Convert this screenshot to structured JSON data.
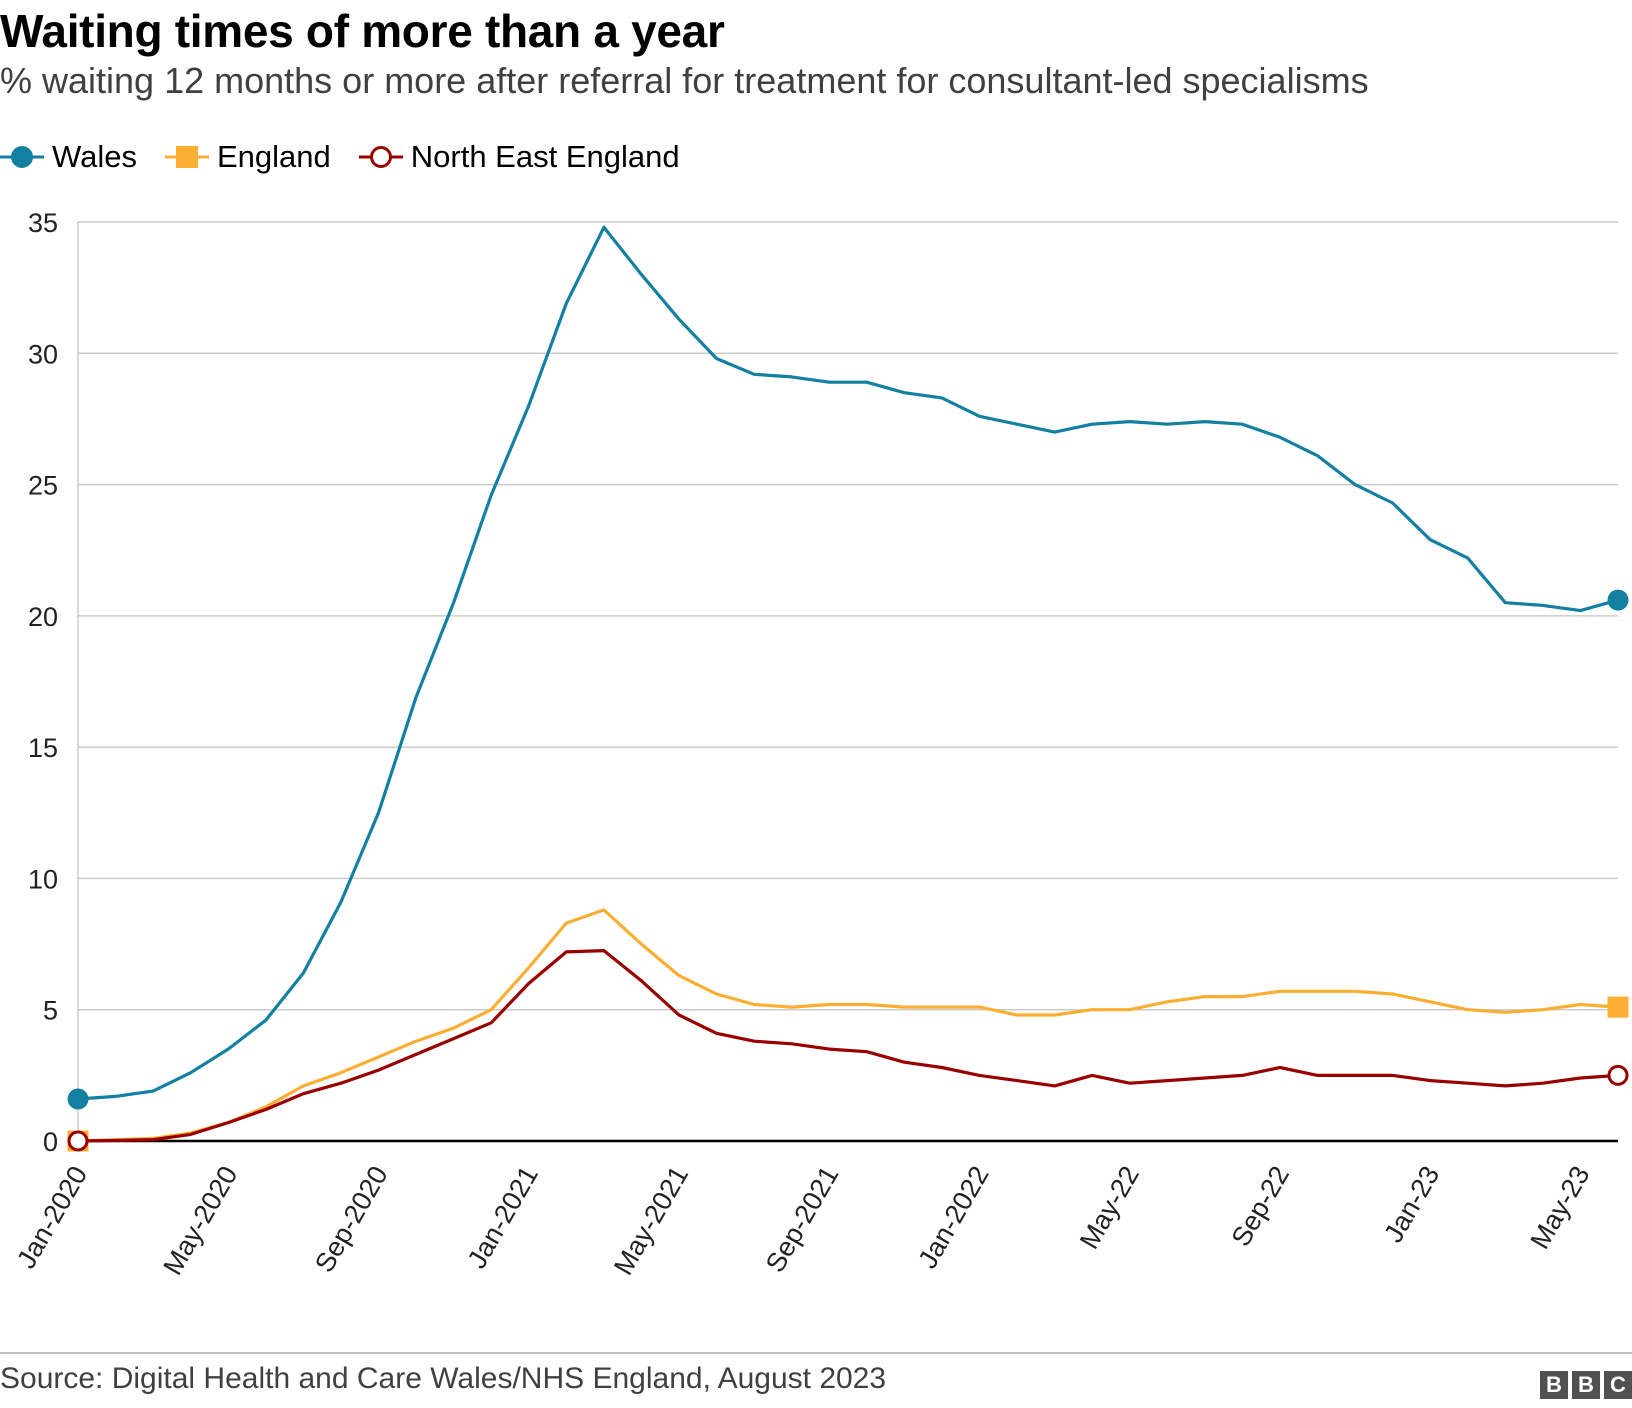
{
  "header": {
    "title": "Waiting times of more than a year",
    "subtitle": "% waiting 12 months or more after referral for treatment for consultant-led specialisms"
  },
  "legend": {
    "items": [
      {
        "label": "Wales",
        "color": "#1380a1",
        "marker": "filled-circle"
      },
      {
        "label": "England",
        "color": "#fbae32",
        "marker": "filled-square"
      },
      {
        "label": "North East England",
        "color": "#990000",
        "marker": "open-circle"
      }
    ]
  },
  "footer": {
    "source": "Source: Digital Health and Care Wales/NHS England, August 2023",
    "logo_letters": [
      "B",
      "B",
      "C"
    ]
  },
  "chart_data": {
    "type": "line",
    "title": "Waiting times of more than a year",
    "subtitle": "% waiting 12 months or more after referral for treatment for consultant-led specialisms",
    "xlabel": "",
    "ylabel": "",
    "ylim": [
      0,
      35
    ],
    "yticks": [
      0,
      5,
      10,
      15,
      20,
      25,
      30,
      35
    ],
    "grid": true,
    "legend_position": "top-left",
    "categories": [
      "Jan-2020",
      "Feb-2020",
      "Mar-2020",
      "Apr-2020",
      "May-2020",
      "Jun-2020",
      "Jul-2020",
      "Aug-2020",
      "Sep-2020",
      "Oct-2020",
      "Nov-2020",
      "Dec-2020",
      "Jan-2021",
      "Feb-2021",
      "Mar-2021",
      "Apr-2021",
      "May-2021",
      "Jun-2021",
      "Jul-2021",
      "Aug-2021",
      "Sep-2021",
      "Oct-2021",
      "Nov-2021",
      "Dec-2021",
      "Jan-2022",
      "Feb-2022",
      "Mar-2022",
      "Apr-2022",
      "May-22",
      "Jun-22",
      "Jul-22",
      "Aug-22",
      "Sep-22",
      "Oct-22",
      "Nov-22",
      "Dec-22",
      "Jan-23",
      "Feb-23",
      "Mar-23",
      "Apr-23",
      "May-23",
      "Jun-23"
    ],
    "x_tick_labels": [
      "Jan-2020",
      "May-2020",
      "Sep-2020",
      "Jan-2021",
      "May-2021",
      "Sep-2021",
      "Jan-2022",
      "May-22",
      "Sep-22",
      "Jan-23",
      "May-23"
    ],
    "x_tick_indices": [
      0,
      4,
      8,
      12,
      16,
      20,
      24,
      28,
      32,
      36,
      40
    ],
    "series": [
      {
        "name": "Wales",
        "color": "#1380a1",
        "marker": "filled-circle",
        "values": [
          1.6,
          1.7,
          1.9,
          2.6,
          3.5,
          4.6,
          6.4,
          9.1,
          12.5,
          16.9,
          20.5,
          24.6,
          28.0,
          31.9,
          34.8,
          33.0,
          31.3,
          29.8,
          29.2,
          29.1,
          28.9,
          28.9,
          28.5,
          28.3,
          27.6,
          27.3,
          27.0,
          27.3,
          27.4,
          27.3,
          27.4,
          27.3,
          26.8,
          26.1,
          25.0,
          24.3,
          22.9,
          22.2,
          20.5,
          20.4,
          20.2,
          20.6
        ]
      },
      {
        "name": "England",
        "color": "#fbae32",
        "marker": "filled-square",
        "values": [
          0.0,
          0.05,
          0.1,
          0.3,
          0.7,
          1.3,
          2.1,
          2.6,
          3.2,
          3.8,
          4.3,
          5.0,
          6.6,
          8.3,
          8.8,
          7.5,
          6.3,
          5.6,
          5.2,
          5.1,
          5.2,
          5.2,
          5.1,
          5.1,
          5.1,
          4.8,
          4.8,
          5.0,
          5.0,
          5.3,
          5.5,
          5.5,
          5.7,
          5.7,
          5.7,
          5.6,
          5.3,
          5.0,
          4.9,
          5.0,
          5.2,
          5.1
        ]
      },
      {
        "name": "North East England",
        "color": "#990000",
        "marker": "open-circle",
        "values": [
          0.0,
          0.02,
          0.05,
          0.25,
          0.7,
          1.2,
          1.8,
          2.2,
          2.7,
          3.3,
          3.9,
          4.5,
          6.0,
          7.2,
          7.25,
          6.1,
          4.8,
          4.1,
          3.8,
          3.7,
          3.5,
          3.4,
          3.0,
          2.8,
          2.5,
          2.3,
          2.1,
          2.5,
          2.2,
          2.3,
          2.4,
          2.5,
          2.8,
          2.5,
          2.5,
          2.5,
          2.3,
          2.2,
          2.1,
          2.2,
          2.4,
          2.5
        ]
      }
    ]
  }
}
